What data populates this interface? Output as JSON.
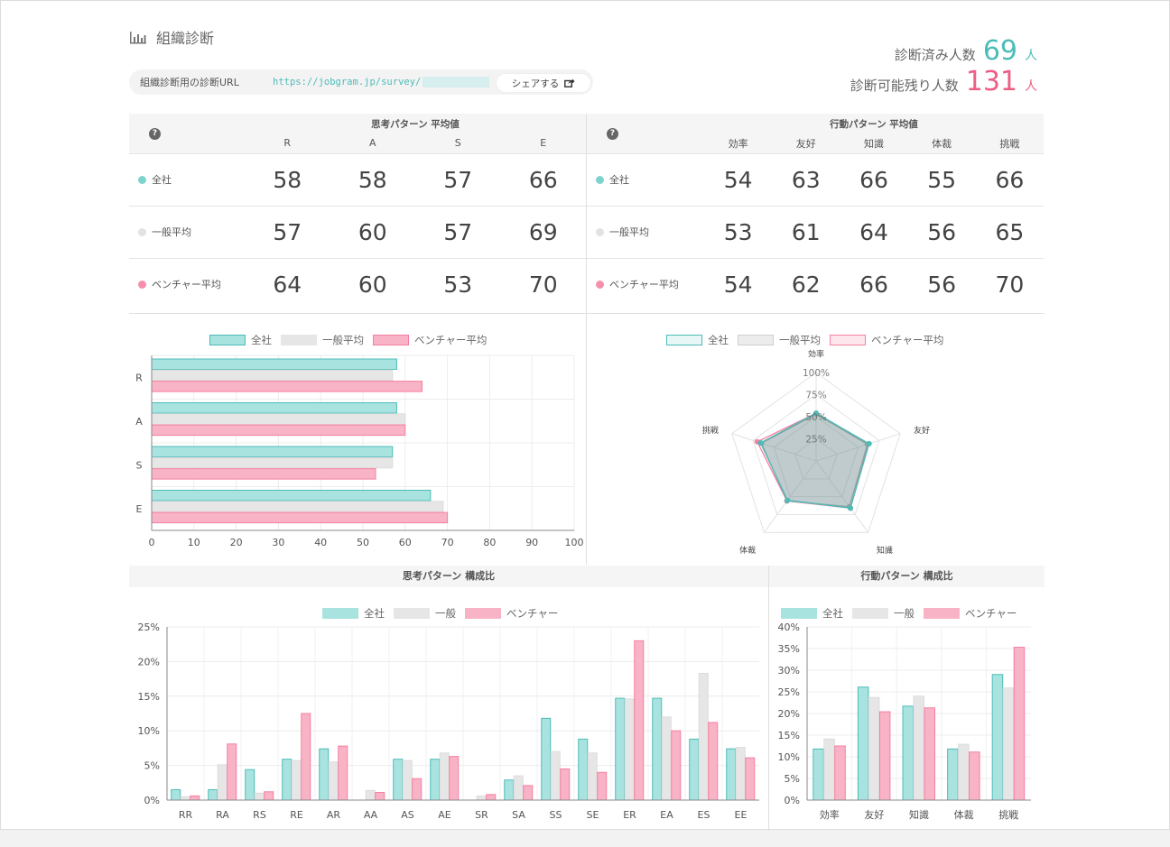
{
  "header": {
    "title": "組織診断",
    "url_label": "組織診断用の診断URL",
    "url": "https://jobgram.jp/survey/",
    "share_label": "シェアする",
    "diagnosed_label": "診断済み人数",
    "diagnosed_count": "69",
    "remaining_label": "診断可能残り人数",
    "remaining_count": "131",
    "unit": "人"
  },
  "colors": {
    "company": "#4cbcb8",
    "general": "#dedede",
    "venture": "#f57fa0"
  },
  "thinking_table": {
    "title": "思考パターン 平均値",
    "columns": [
      "R",
      "A",
      "S",
      "E"
    ],
    "rows": [
      {
        "label": "全社",
        "values": [
          "58",
          "58",
          "57",
          "66"
        ]
      },
      {
        "label": "一般平均",
        "values": [
          "57",
          "60",
          "57",
          "69"
        ]
      },
      {
        "label": "ベンチャー平均",
        "values": [
          "64",
          "60",
          "53",
          "70"
        ]
      }
    ]
  },
  "action_table": {
    "title": "行動パターン 平均値",
    "columns": [
      "効率",
      "友好",
      "知識",
      "体裁",
      "挑戦"
    ],
    "rows": [
      {
        "label": "全社",
        "values": [
          "54",
          "63",
          "66",
          "55",
          "66"
        ]
      },
      {
        "label": "一般平均",
        "values": [
          "53",
          "61",
          "64",
          "56",
          "65"
        ]
      },
      {
        "label": "ベンチャー平均",
        "values": [
          "54",
          "62",
          "66",
          "56",
          "70"
        ]
      }
    ]
  },
  "legend_avg": [
    "全社",
    "一般平均",
    "ベンチャー平均"
  ],
  "legend_short": [
    "全社",
    "一般",
    "ベンチャー"
  ],
  "composition_titles": {
    "thinking": "思考パターン 構成比",
    "action": "行動パターン 構成比"
  },
  "chart_data": [
    {
      "type": "bar",
      "orientation": "horizontal",
      "categories": [
        "R",
        "A",
        "S",
        "E"
      ],
      "xlim": [
        0,
        100
      ],
      "xticks": [
        "0",
        "10",
        "20",
        "30",
        "40",
        "50",
        "60",
        "70",
        "80",
        "90",
        "100"
      ],
      "series": [
        {
          "name": "全社",
          "values": [
            58,
            58,
            57,
            66
          ]
        },
        {
          "name": "一般平均",
          "values": [
            57,
            60,
            57,
            69
          ]
        },
        {
          "name": "ベンチャー平均",
          "values": [
            64,
            60,
            53,
            70
          ]
        }
      ],
      "legend": "top"
    },
    {
      "type": "radar",
      "categories": [
        "効率",
        "友好",
        "知識",
        "体裁",
        "挑戦"
      ],
      "rlim": [
        0,
        100
      ],
      "rticks": [
        "25%",
        "50%",
        "75%",
        "100%"
      ],
      "series": [
        {
          "name": "全社",
          "values": [
            54,
            63,
            66,
            55,
            66
          ]
        },
        {
          "name": "一般平均",
          "values": [
            53,
            61,
            64,
            56,
            65
          ]
        },
        {
          "name": "ベンチャー平均",
          "values": [
            54,
            62,
            66,
            56,
            70
          ]
        }
      ],
      "legend": "top"
    },
    {
      "type": "bar",
      "title": "思考パターン 構成比",
      "categories": [
        "RR",
        "RA",
        "RS",
        "RE",
        "AR",
        "AA",
        "AS",
        "AE",
        "SR",
        "SA",
        "SS",
        "SE",
        "ER",
        "EA",
        "ES",
        "EE"
      ],
      "ylim": [
        0,
        25
      ],
      "yticks": [
        "0%",
        "5%",
        "10%",
        "15%",
        "20%",
        "25%"
      ],
      "series": [
        {
          "name": "全社",
          "values": [
            1.5,
            1.5,
            4.4,
            5.9,
            7.4,
            0,
            5.9,
            5.9,
            0,
            2.9,
            11.8,
            8.8,
            14.7,
            14.7,
            8.8,
            7.4
          ]
        },
        {
          "name": "一般",
          "values": [
            0.5,
            5.1,
            1.0,
            5.7,
            5.5,
            1.4,
            5.7,
            6.8,
            0.6,
            3.5,
            7.0,
            6.8,
            14.6,
            12.0,
            18.3,
            7.6
          ]
        },
        {
          "name": "ベンチャー",
          "values": [
            0.6,
            8.1,
            1.2,
            12.5,
            7.8,
            1.1,
            3.1,
            6.3,
            0.8,
            2.1,
            4.5,
            4.0,
            23.0,
            10.0,
            11.2,
            6.1
          ]
        }
      ],
      "legend": "top"
    },
    {
      "type": "bar",
      "title": "行動パターン 構成比",
      "categories": [
        "効率",
        "友好",
        "知識",
        "体裁",
        "挑戦"
      ],
      "ylim": [
        0,
        40
      ],
      "yticks": [
        "0%",
        "5%",
        "10%",
        "15%",
        "20%",
        "25%",
        "30%",
        "35%",
        "40%"
      ],
      "series": [
        {
          "name": "全社",
          "values": [
            11.8,
            26.1,
            21.7,
            11.8,
            29.0
          ]
        },
        {
          "name": "一般",
          "values": [
            14.1,
            23.7,
            24.0,
            12.9,
            25.9
          ]
        },
        {
          "name": "ベンチャー",
          "values": [
            12.5,
            20.4,
            21.3,
            11.1,
            35.3
          ]
        }
      ],
      "legend": "top"
    }
  ]
}
